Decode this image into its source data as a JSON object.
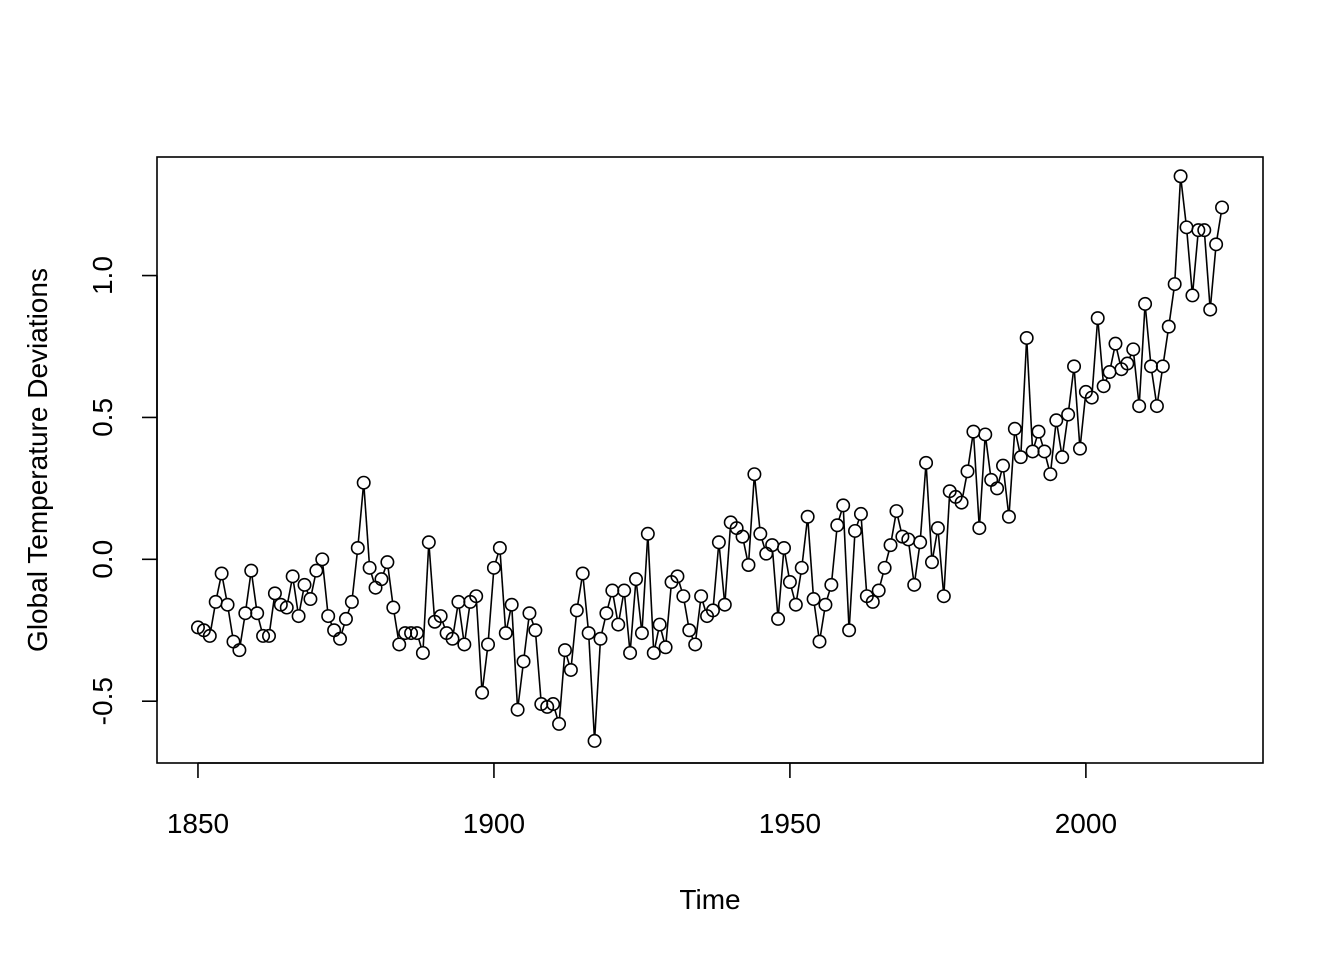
{
  "chart_data": {
    "type": "line",
    "title": "",
    "xlabel": "Time",
    "ylabel": "Global Temperature Deviations",
    "xlim": [
      1843.08,
      2029.92
    ],
    "ylim": [
      -0.7178,
      1.4178
    ],
    "x_ticks": [
      1850,
      1900,
      1950,
      2000
    ],
    "y_ticks": [
      -0.5,
      0.0,
      0.5,
      1.0
    ],
    "x_tick_labels": [
      "1850",
      "1900",
      "1950",
      "2000"
    ],
    "y_tick_labels": [
      "-0.5",
      "0.0",
      "0.5",
      "1.0"
    ],
    "grid": false,
    "legend": "none",
    "marker": "open-circle",
    "line_color": "#000000",
    "series": [
      {
        "x_start": 1850,
        "x_step": 1,
        "values": [
          -0.24,
          -0.25,
          -0.27,
          -0.15,
          -0.05,
          -0.16,
          -0.29,
          -0.32,
          -0.19,
          -0.04,
          -0.19,
          -0.27,
          -0.27,
          -0.12,
          -0.16,
          -0.17,
          -0.06,
          -0.2,
          -0.09,
          -0.14,
          -0.04,
          0.0,
          -0.2,
          -0.25,
          -0.28,
          -0.21,
          -0.15,
          0.04,
          0.27,
          -0.03,
          -0.1,
          -0.07,
          -0.01,
          -0.17,
          -0.3,
          -0.26,
          -0.26,
          -0.26,
          -0.33,
          0.06,
          -0.22,
          -0.2,
          -0.26,
          -0.28,
          -0.15,
          -0.3,
          -0.15,
          -0.13,
          -0.47,
          -0.3,
          -0.03,
          0.04,
          -0.26,
          -0.16,
          -0.53,
          -0.36,
          -0.19,
          -0.25,
          -0.51,
          -0.52,
          -0.51,
          -0.58,
          -0.32,
          -0.39,
          -0.18,
          -0.05,
          -0.26,
          -0.64,
          -0.28,
          -0.19,
          -0.11,
          -0.23,
          -0.11,
          -0.33,
          -0.07,
          -0.26,
          0.09,
          -0.33,
          -0.23,
          -0.31,
          -0.08,
          -0.06,
          -0.13,
          -0.25,
          -0.3,
          -0.13,
          -0.2,
          -0.18,
          0.06,
          -0.16,
          0.13,
          0.11,
          0.08,
          -0.02,
          0.3,
          0.09,
          0.02,
          0.05,
          -0.21,
          0.04,
          -0.08,
          -0.16,
          -0.03,
          0.15,
          -0.14,
          -0.29,
          -0.16,
          -0.09,
          0.12,
          0.19,
          -0.25,
          0.1,
          0.16,
          -0.13,
          -0.15,
          -0.11,
          -0.03,
          0.05,
          0.17,
          0.08,
          0.07,
          -0.09,
          0.06,
          0.34,
          -0.01,
          0.11,
          -0.13,
          0.24,
          0.22,
          0.2,
          0.31,
          0.45,
          0.11,
          0.44,
          0.28,
          0.25,
          0.33,
          0.15,
          0.46,
          0.36,
          0.78,
          0.38,
          0.45,
          0.38,
          0.3,
          0.49,
          0.36,
          0.51,
          0.68,
          0.39,
          0.59,
          0.57,
          0.85,
          0.61,
          0.66,
          0.76,
          0.67,
          0.69,
          0.74,
          0.54,
          0.9,
          0.68,
          0.54,
          0.68,
          0.82,
          0.97,
          1.35,
          1.17,
          0.93,
          1.16,
          1.16,
          0.88,
          1.11,
          1.24
        ]
      }
    ]
  }
}
